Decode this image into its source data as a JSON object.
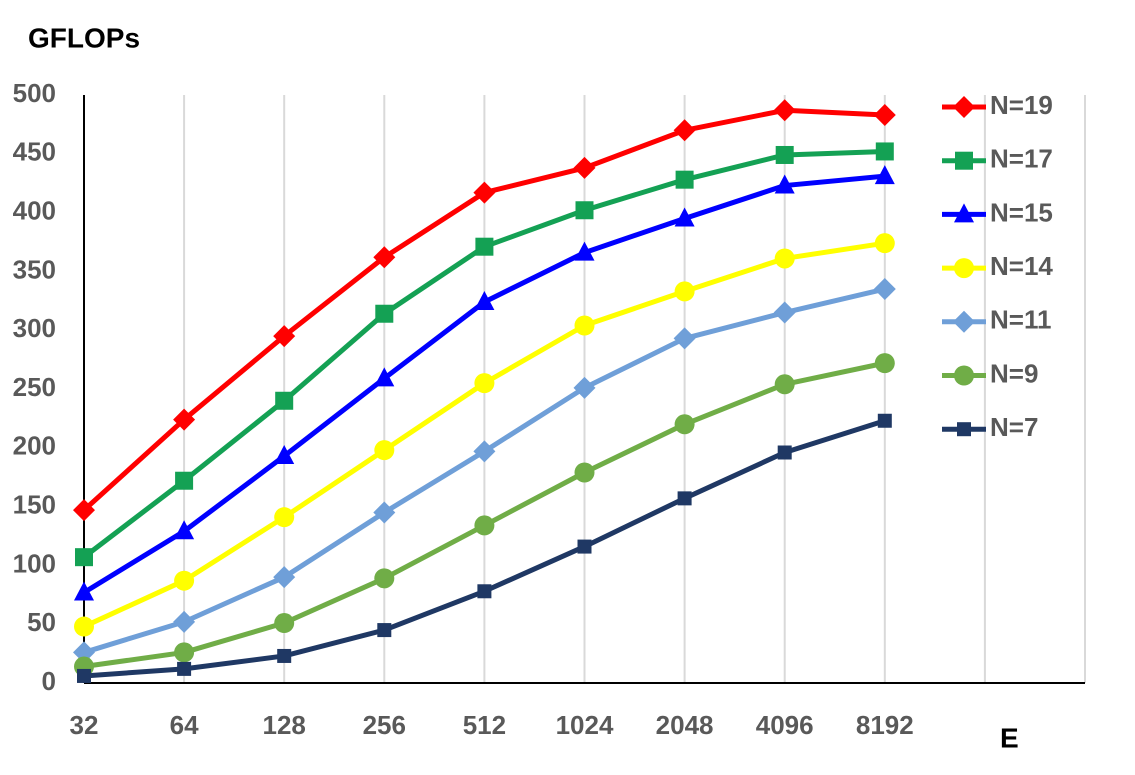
{
  "chart_data": {
    "type": "line",
    "y_label": "GFLOPs",
    "x_label": "E",
    "categories": [
      "32",
      "64",
      "128",
      "256",
      "512",
      "1024",
      "2048",
      "4096",
      "8192",
      null,
      null
    ],
    "series": [
      {
        "name": "N=19",
        "color": "#ff0000",
        "marker": "diamond",
        "values": [
          147,
          224,
          295,
          362,
          417,
          438,
          470,
          487,
          483,
          null,
          null
        ]
      },
      {
        "name": "N=17",
        "color": "#14a154",
        "marker": "square",
        "values": [
          107,
          172,
          240,
          314,
          371,
          402,
          428,
          449,
          452,
          null,
          null
        ]
      },
      {
        "name": "N=15",
        "color": "#0000ff",
        "marker": "triangle",
        "values": [
          77,
          129,
          193,
          259,
          324,
          366,
          395,
          423,
          431,
          null,
          null
        ]
      },
      {
        "name": "N=14",
        "color": "#ffff00",
        "marker": "circle",
        "values": [
          48,
          87,
          141,
          198,
          255,
          304,
          333,
          361,
          374,
          null,
          null
        ]
      },
      {
        "name": "N=11",
        "color": "#6f9fd8",
        "marker": "diamond",
        "values": [
          26,
          52,
          90,
          145,
          197,
          251,
          293,
          315,
          335,
          null,
          null
        ]
      },
      {
        "name": "N=9",
        "color": "#70ad47",
        "marker": "circle",
        "values": [
          14,
          26,
          51,
          89,
          134,
          179,
          220,
          254,
          272,
          null,
          null
        ]
      },
      {
        "name": "N=7",
        "color": "#1f3864",
        "marker": "square-small",
        "values": [
          6,
          12,
          23,
          45,
          78,
          116,
          157,
          196,
          223,
          null,
          null
        ]
      }
    ],
    "ylim": [
      0,
      500
    ],
    "yticks": [
      0,
      50,
      100,
      150,
      200,
      250,
      300,
      350,
      400,
      450,
      500
    ],
    "grid": "vertical",
    "legend": "right"
  }
}
